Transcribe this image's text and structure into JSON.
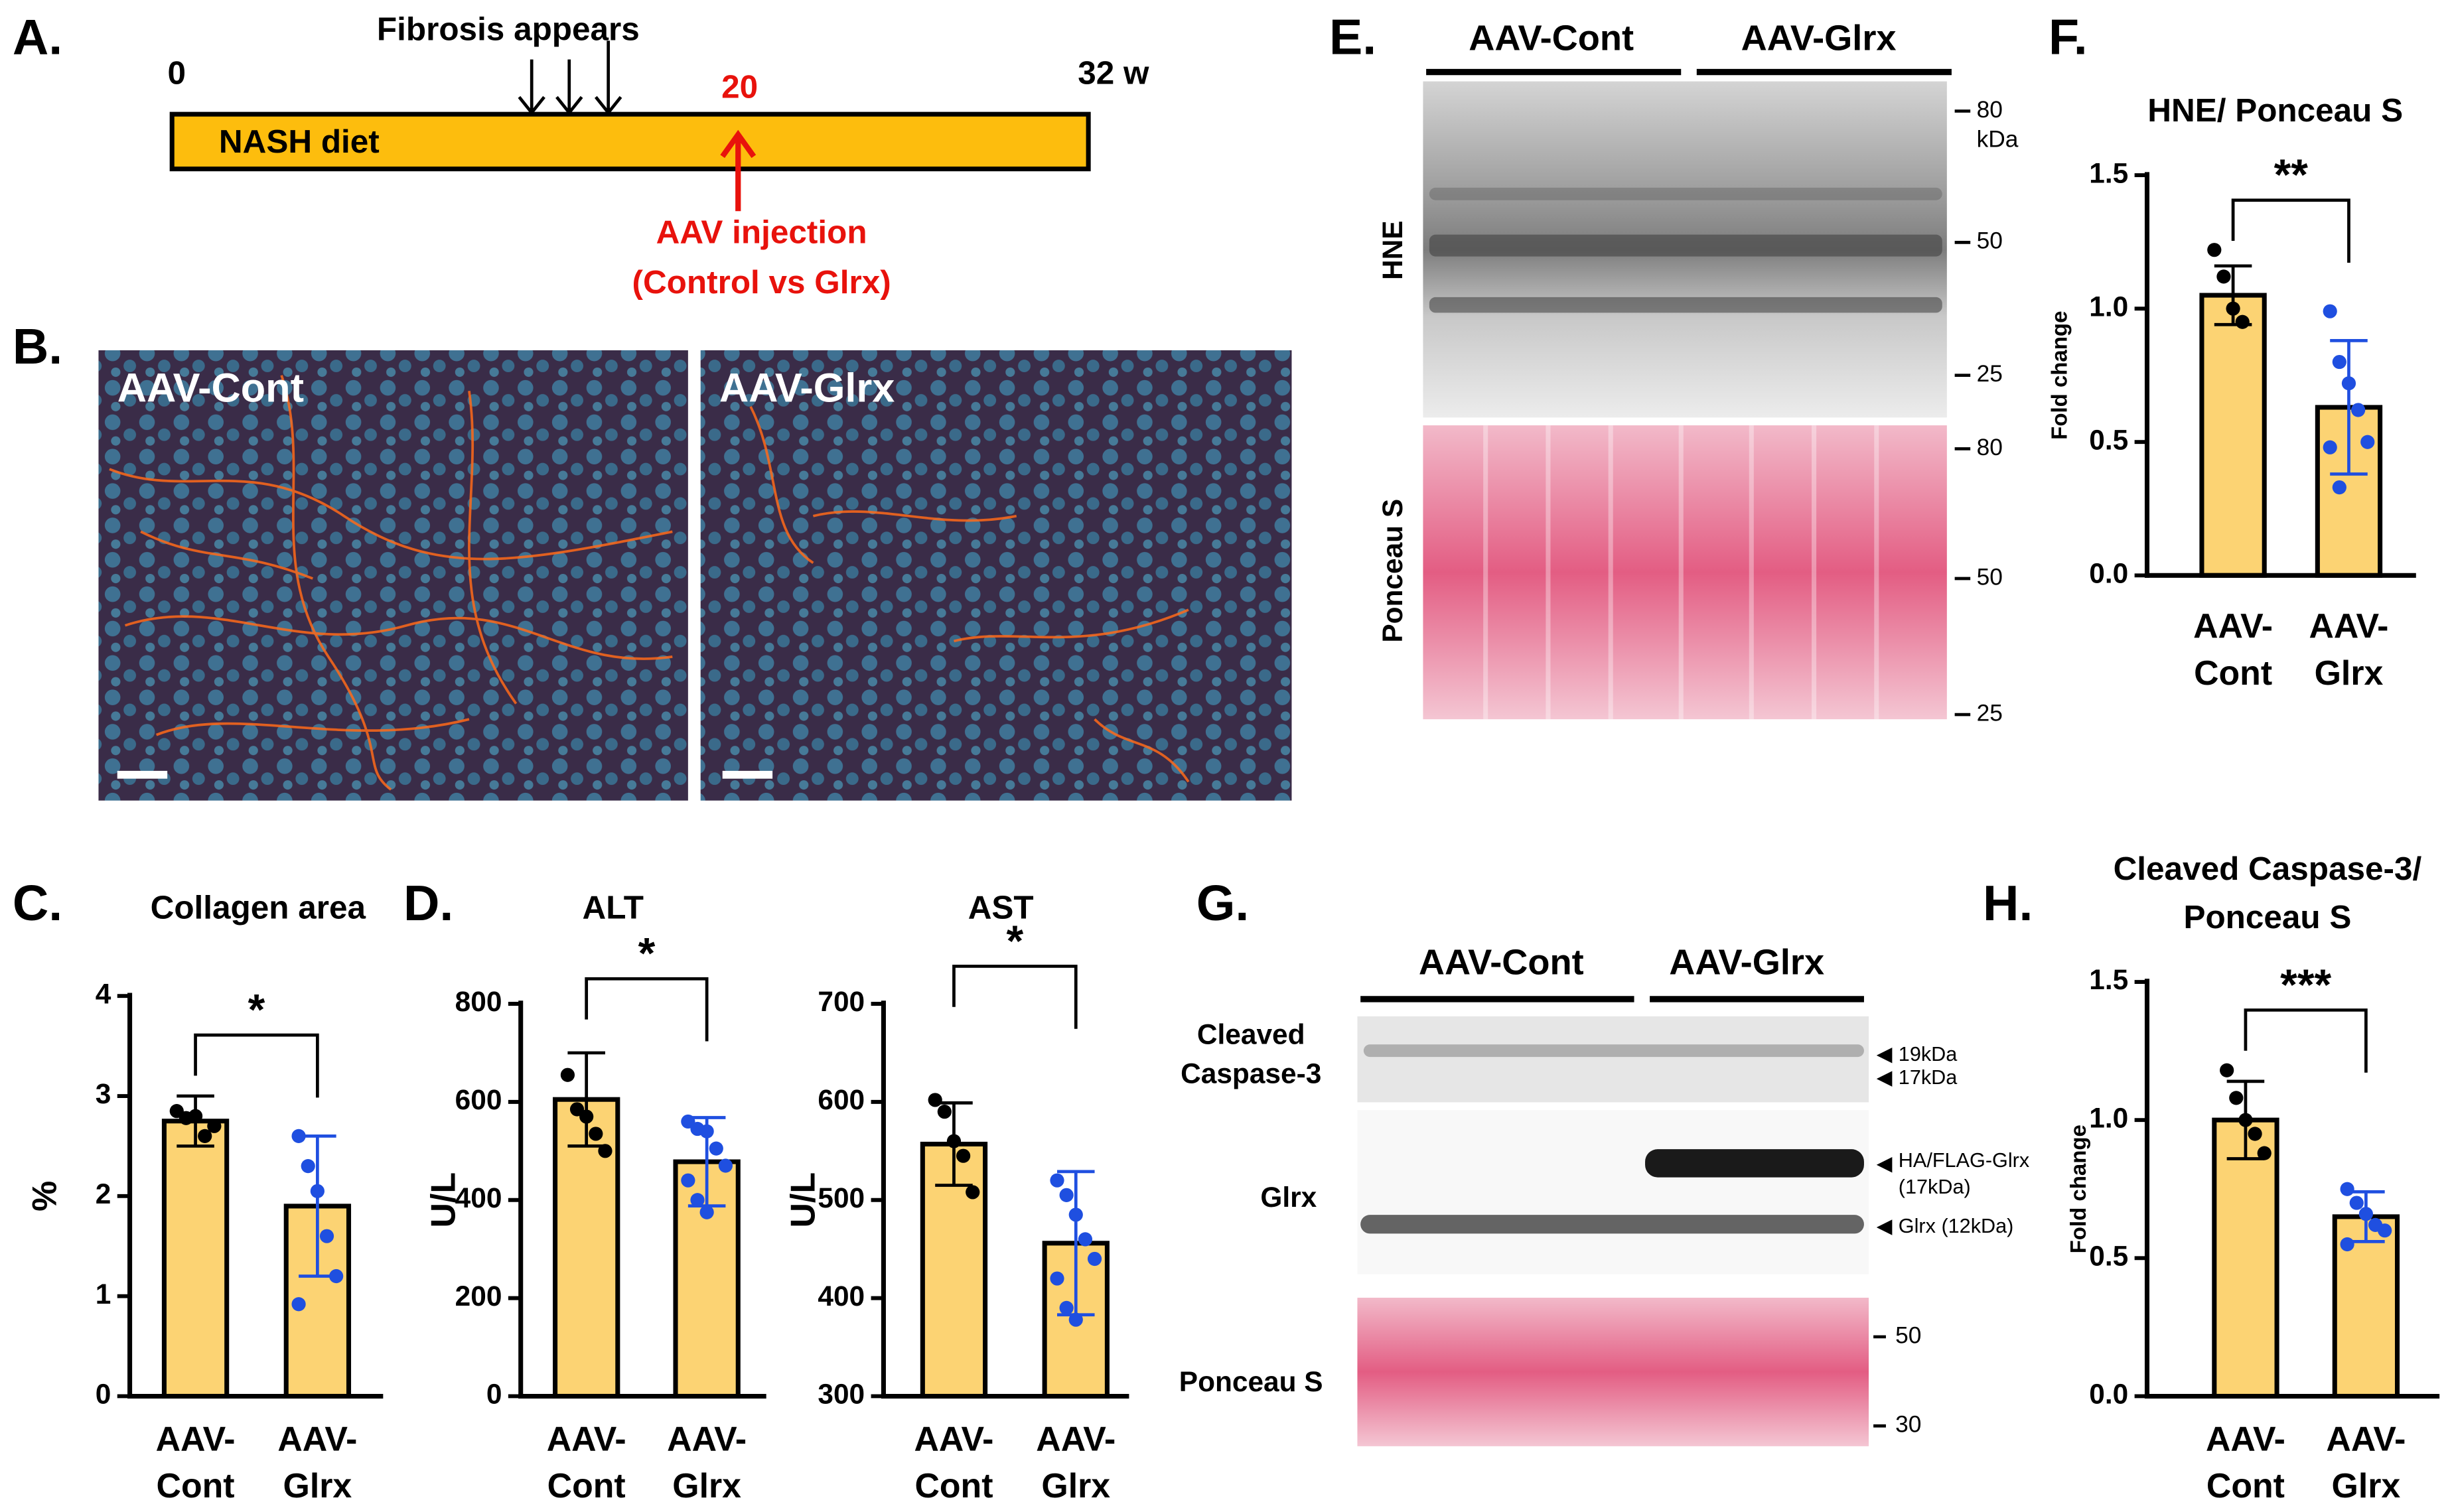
{
  "panels": {
    "a": "A.",
    "b": "B.",
    "c": "C.",
    "d": "D.",
    "e": "E.",
    "f": "F.",
    "g": "G.",
    "h": "H."
  },
  "timeline": {
    "start": "0",
    "fibrosis": "Fibrosis appears",
    "injection_week": "20",
    "end": "32 w",
    "diet": "NASH diet",
    "injection": "AAV injection",
    "injection_detail": "(Control vs Glrx)"
  },
  "histology": {
    "left": "AAV-Cont",
    "right": "AAV-Glrx"
  },
  "blot_e": {
    "groups": [
      "AAV-Cont",
      "AAV-Glrx"
    ],
    "rows": [
      "HNE",
      "Ponceau S"
    ],
    "markers_top": [
      "80",
      "kDa",
      "50",
      "25"
    ],
    "markers_bottom": [
      "80",
      "50",
      "25"
    ]
  },
  "blot_g": {
    "groups": [
      "AAV-Cont",
      "AAV-Glrx"
    ],
    "rows": [
      "Cleaved",
      "Caspase-3",
      "Glrx",
      "Ponceau S"
    ],
    "bands": [
      "19kDa",
      "17kDa",
      "HA/FLAG-Glrx",
      "(17kDa)",
      "Glrx (12kDa)"
    ],
    "markers": [
      "50",
      "30"
    ]
  },
  "chart_data": [
    {
      "type": "bar",
      "title": "Collagen area",
      "ylabel": "%",
      "categories": [
        [
          "AAV-",
          "Cont"
        ],
        [
          "AAV-",
          "Glrx"
        ]
      ],
      "values": [
        2.75,
        1.9
      ],
      "errors": [
        0.25,
        0.7
      ],
      "points": [
        [
          2.85,
          2.78,
          2.8,
          2.6,
          2.7
        ],
        [
          2.6,
          2.3,
          2.05,
          1.6,
          1.2,
          0.92
        ]
      ],
      "bar_color": "#fcd373",
      "point_colors": [
        "#000000",
        "#1f4fe0"
      ],
      "significance": "*",
      "ylim": [
        0,
        4
      ],
      "yticks": [
        0,
        1,
        2,
        3,
        4
      ]
    },
    {
      "type": "bar",
      "title": "ALT",
      "ylabel": "U/L",
      "categories": [
        [
          "AAV-",
          "Cont"
        ],
        [
          "AAV-",
          "Glrx"
        ]
      ],
      "values": [
        605,
        478
      ],
      "errors": [
        95,
        90
      ],
      "points": [
        [
          655,
          585,
          570,
          535,
          500
        ],
        [
          560,
          545,
          540,
          505,
          470,
          440,
          400,
          375
        ]
      ],
      "bar_color": "#fcd373",
      "point_colors": [
        "#000000",
        "#1f4fe0"
      ],
      "significance": "*",
      "ylim": [
        0,
        800
      ],
      "yticks": [
        0,
        200,
        400,
        600,
        800
      ]
    },
    {
      "type": "bar",
      "title": "AST",
      "ylabel": "U/L",
      "categories": [
        [
          "AAV-",
          "Cont"
        ],
        [
          "AAV-",
          "Glrx"
        ]
      ],
      "values": [
        557,
        456
      ],
      "errors": [
        42,
        73
      ],
      "points": [
        [
          602,
          590,
          560,
          545,
          508
        ],
        [
          520,
          505,
          485,
          460,
          440,
          420,
          390,
          378
        ]
      ],
      "bar_color": "#fcd373",
      "point_colors": [
        "#000000",
        "#1f4fe0"
      ],
      "significance": "*",
      "ylim": [
        300,
        700
      ],
      "yticks": [
        300,
        400,
        500,
        600,
        700
      ]
    },
    {
      "type": "bar",
      "title": "HNE/ Ponceau S",
      "ylabel": "Fold change",
      "categories": [
        [
          "AAV-",
          "Cont"
        ],
        [
          "AAV-",
          "Glrx"
        ]
      ],
      "values": [
        1.05,
        0.63
      ],
      "errors": [
        0.11,
        0.25
      ],
      "points": [
        [
          1.22,
          1.12,
          1.0,
          0.95
        ],
        [
          0.99,
          0.8,
          0.72,
          0.62,
          0.5,
          0.48,
          0.33
        ]
      ],
      "bar_color": "#fcd373",
      "point_colors": [
        "#000000",
        "#1f4fe0"
      ],
      "significance": "**",
      "ylim": [
        0,
        1.5
      ],
      "yticks": [
        {
          "value": 0,
          "label": "0.0"
        },
        0.5,
        {
          "value": 1,
          "label": "1.0"
        },
        1.5
      ]
    },
    {
      "type": "bar",
      "title": [
        "Cleaved Caspase-3/",
        "Ponceau S"
      ],
      "ylabel": "Fold change",
      "categories": [
        [
          "AAV-",
          "Cont"
        ],
        [
          "AAV-",
          "Glrx"
        ]
      ],
      "values": [
        1.0,
        0.65
      ],
      "errors": [
        0.14,
        0.09
      ],
      "points": [
        [
          1.18,
          1.08,
          1.0,
          0.95,
          0.88
        ],
        [
          0.75,
          0.7,
          0.66,
          0.62,
          0.6,
          0.55
        ]
      ],
      "bar_color": "#fcd373",
      "point_colors": [
        "#000000",
        "#1f4fe0"
      ],
      "significance": "***",
      "ylim": [
        0,
        1.5
      ],
      "yticks": [
        {
          "value": 0,
          "label": "0.0"
        },
        0.5,
        {
          "value": 1,
          "label": "1.0"
        },
        1.5
      ]
    }
  ]
}
